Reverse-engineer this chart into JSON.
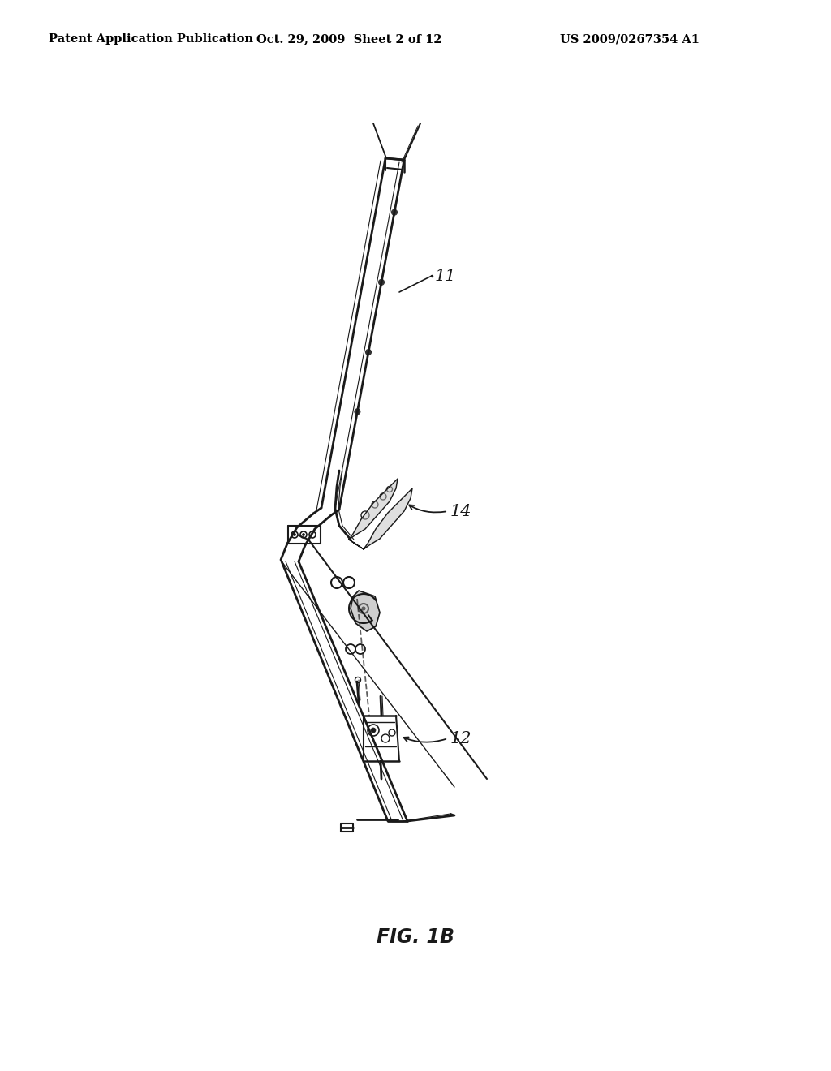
{
  "background_color": "#ffffff",
  "header_left": "Patent Application Publication",
  "header_center": "Oct. 29, 2009  Sheet 2 of 12",
  "header_right": "US 2009/0267354 A1",
  "figure_label": "FIG. 1B",
  "label_11": "11",
  "label_12": "12",
  "label_14": "14",
  "header_fontsize": 10.5,
  "label_fontsize": 15,
  "fig_label_fontsize": 17,
  "col": "#1a1a1a"
}
